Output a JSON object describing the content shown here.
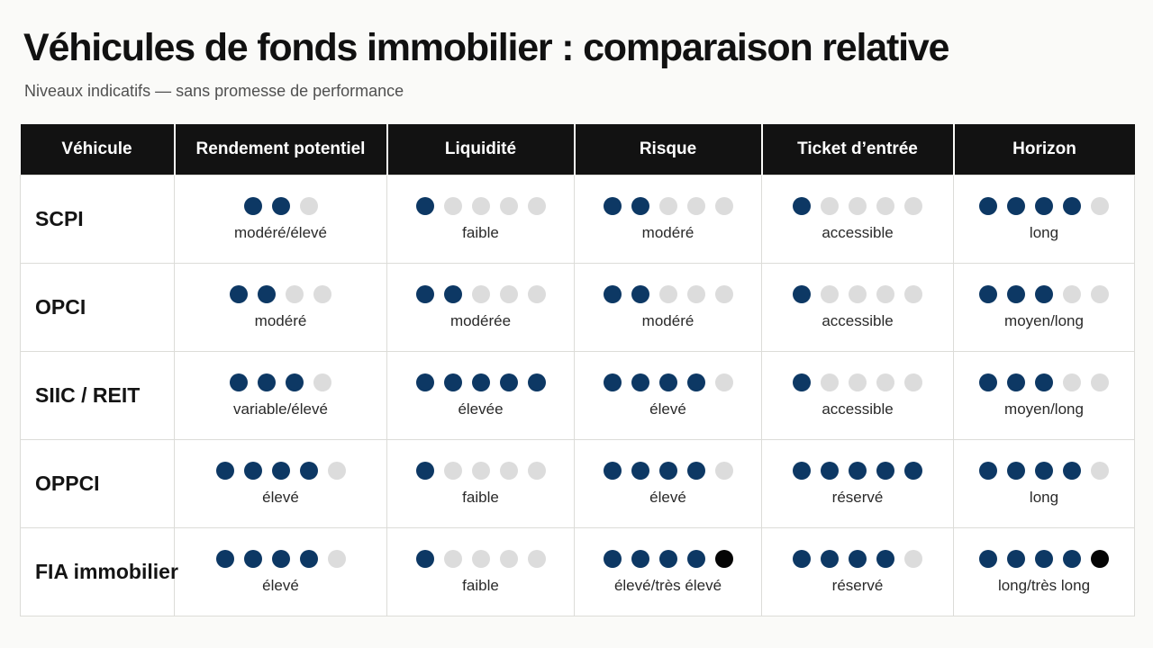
{
  "title": "Véhicules de fonds immobilier : comparaison relative",
  "subtitle": "Niveaux indicatifs — sans promesse de performance",
  "colors": {
    "filled_dot": "#0d3864",
    "empty_dot": "#dcdcdc",
    "max_dot": "#050505",
    "header_bg": "#121212"
  },
  "columns": [
    "Véhicule",
    "Rendement potentiel",
    "Liquidité",
    "Risque",
    "Ticket d’entrée",
    "Horizon"
  ],
  "rows": [
    {
      "vehicle": "SCPI",
      "cells": [
        {
          "filled": 2,
          "total": 3,
          "max": 0,
          "label": "modéré/élevé"
        },
        {
          "filled": 1,
          "total": 5,
          "max": 0,
          "label": "faible"
        },
        {
          "filled": 2,
          "total": 5,
          "max": 0,
          "label": "modéré"
        },
        {
          "filled": 1,
          "total": 5,
          "max": 0,
          "label": "accessible"
        },
        {
          "filled": 4,
          "total": 5,
          "max": 0,
          "label": "long"
        }
      ]
    },
    {
      "vehicle": "OPCI",
      "cells": [
        {
          "filled": 2,
          "total": 4,
          "max": 0,
          "label": "modéré"
        },
        {
          "filled": 2,
          "total": 5,
          "max": 0,
          "label": "modérée"
        },
        {
          "filled": 2,
          "total": 5,
          "max": 0,
          "label": "modéré"
        },
        {
          "filled": 1,
          "total": 5,
          "max": 0,
          "label": "accessible"
        },
        {
          "filled": 3,
          "total": 5,
          "max": 0,
          "label": "moyen/long"
        }
      ]
    },
    {
      "vehicle": "SIIC / REIT",
      "cells": [
        {
          "filled": 3,
          "total": 4,
          "max": 0,
          "label": "variable/élevé"
        },
        {
          "filled": 5,
          "total": 5,
          "max": 0,
          "label": "élevée"
        },
        {
          "filled": 4,
          "total": 5,
          "max": 0,
          "label": "élevé"
        },
        {
          "filled": 1,
          "total": 5,
          "max": 0,
          "label": "accessible"
        },
        {
          "filled": 3,
          "total": 5,
          "max": 0,
          "label": "moyen/long"
        }
      ]
    },
    {
      "vehicle": "OPPCI",
      "cells": [
        {
          "filled": 4,
          "total": 5,
          "max": 0,
          "label": "élevé"
        },
        {
          "filled": 1,
          "total": 5,
          "max": 0,
          "label": "faible"
        },
        {
          "filled": 4,
          "total": 5,
          "max": 0,
          "label": "élevé"
        },
        {
          "filled": 5,
          "total": 5,
          "max": 0,
          "label": "réservé"
        },
        {
          "filled": 4,
          "total": 5,
          "max": 0,
          "label": "long"
        }
      ]
    },
    {
      "vehicle": "FIA immobilier",
      "cells": [
        {
          "filled": 4,
          "total": 5,
          "max": 0,
          "label": "élevé"
        },
        {
          "filled": 1,
          "total": 5,
          "max": 0,
          "label": "faible"
        },
        {
          "filled": 4,
          "total": 5,
          "max": 1,
          "label": "élevé/très élevé"
        },
        {
          "filled": 4,
          "total": 5,
          "max": 0,
          "label": "réservé"
        },
        {
          "filled": 4,
          "total": 5,
          "max": 1,
          "label": "long/très long"
        }
      ]
    }
  ]
}
